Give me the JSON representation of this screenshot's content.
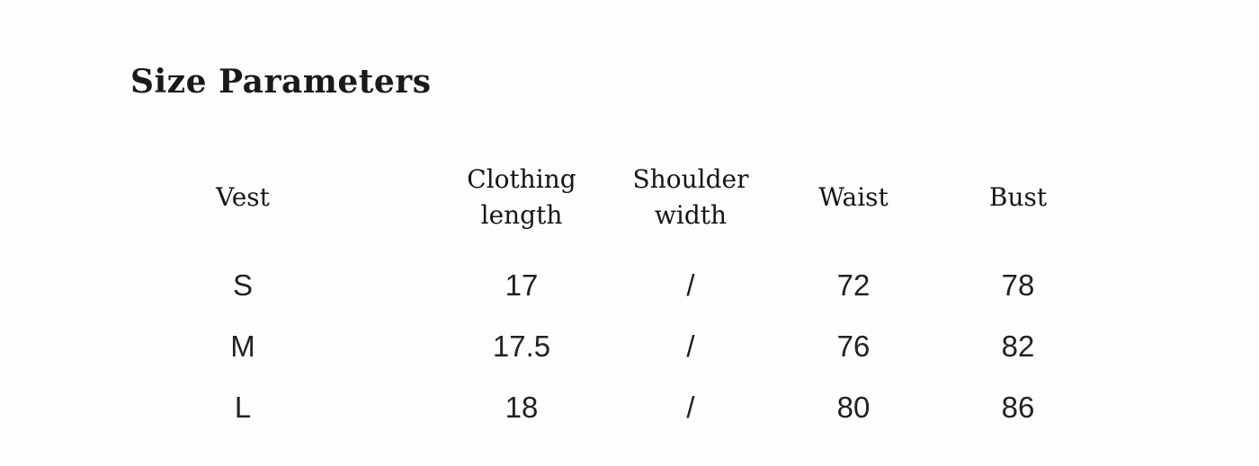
{
  "section": {
    "title": "Size Parameters"
  },
  "table": {
    "columns": [
      {
        "label": "Vest",
        "lines": [
          "Vest"
        ]
      },
      {
        "label": "Clothing length",
        "lines": [
          "Clothing",
          "length"
        ]
      },
      {
        "label": "Shoulder width",
        "lines": [
          "Shoulder",
          "width"
        ]
      },
      {
        "label": "Waist",
        "lines": [
          "Waist"
        ]
      },
      {
        "label": "Bust",
        "lines": [
          "Bust"
        ]
      }
    ],
    "rows": [
      {
        "cells": [
          "S",
          "17",
          "/",
          "72",
          "78"
        ]
      },
      {
        "cells": [
          "M",
          "17.5",
          "/",
          "76",
          "82"
        ]
      },
      {
        "cells": [
          "L",
          "18",
          "/",
          "80",
          "86"
        ]
      }
    ]
  },
  "colors": {
    "background": "#fdfdfd",
    "heading_text": "#1a1a1a",
    "body_text": "#222222"
  }
}
